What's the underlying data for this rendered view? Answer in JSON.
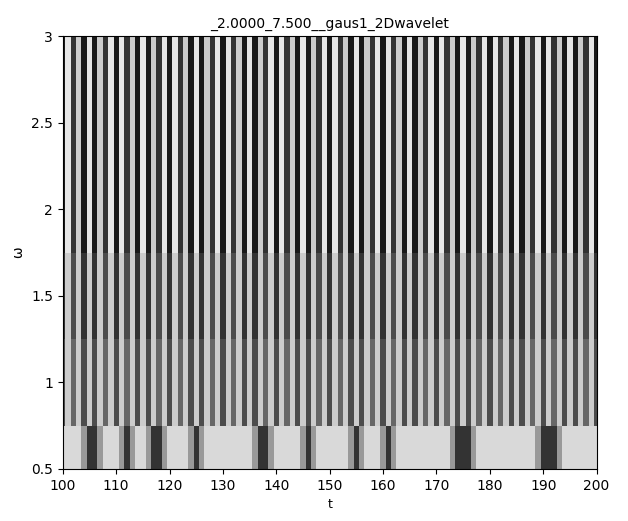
{
  "chart_data": {
    "type": "heatmap",
    "title": "_2.0000_7.500__gaus1_2Dwavelet",
    "x_label": "t",
    "y_label": "ω",
    "xlim": [
      100,
      200
    ],
    "xticks": [
      100,
      110,
      120,
      130,
      140,
      150,
      160,
      170,
      180,
      190,
      200
    ],
    "ylim": [
      0.5,
      3
    ],
    "yticks": [
      0.5,
      1,
      1.5,
      2,
      2.5,
      3
    ],
    "color_range": [
      0,
      1
    ],
    "x": [
      100,
      101,
      102,
      103,
      104,
      105,
      106,
      107,
      108,
      109,
      110,
      111,
      112,
      113,
      114,
      115,
      116,
      117,
      118,
      119,
      120,
      121,
      122,
      123,
      124,
      125,
      126,
      127,
      128,
      129,
      130,
      131,
      132,
      133,
      134,
      135,
      136,
      137,
      138,
      139,
      140,
      141,
      142,
      143,
      144,
      145,
      146,
      147,
      148,
      149,
      150,
      151,
      152,
      153,
      154,
      155,
      156,
      157,
      158,
      159,
      160,
      161,
      162,
      163,
      164,
      165,
      166,
      167,
      168,
      169,
      170,
      171,
      172,
      173,
      174,
      175,
      176,
      177,
      178,
      179,
      180,
      181,
      182,
      183,
      184,
      185,
      186,
      187,
      188,
      189,
      190,
      191,
      192,
      193,
      194,
      195,
      196,
      197,
      198,
      199,
      200
    ],
    "y": [
      0.5,
      1,
      1.5,
      2,
      2.5,
      3
    ],
    "cells": [
      [
        0.85,
        0.85,
        0.85,
        0.85,
        0.6,
        0.2,
        0.2,
        0.6,
        0.85,
        0.85,
        0.85,
        0.6,
        0.2,
        0.6,
        0.85,
        0.85,
        0.6,
        0.2,
        0.2,
        0.6,
        0.85,
        0.85,
        0.85,
        0.85,
        0.6,
        0.2,
        0.6,
        0.85,
        0.85,
        0.85,
        0.85,
        0.85,
        0.85,
        0.85,
        0.85,
        0.85,
        0.6,
        0.2,
        0.2,
        0.6,
        0.85,
        0.85,
        0.85,
        0.85,
        0.85,
        0.6,
        0.2,
        0.6,
        0.85,
        0.85,
        0.85,
        0.85,
        0.85,
        0.85,
        0.6,
        0.2,
        0.6,
        0.85,
        0.85,
        0.85,
        0.6,
        0.2,
        0.6,
        0.85,
        0.85,
        0.85,
        0.85,
        0.85,
        0.85,
        0.85,
        0.85,
        0.85,
        0.85,
        0.6,
        0.2,
        0.2,
        0.2,
        0.6,
        0.85,
        0.85,
        0.85,
        0.85,
        0.85,
        0.85,
        0.85,
        0.85,
        0.85,
        0.85,
        0.85,
        0.6,
        0.2,
        0.2,
        0.2,
        0.6,
        0.85,
        0.85,
        0.85,
        0.85,
        0.85,
        0.85,
        0.85
      ],
      [
        0.3,
        0.8,
        0.4,
        0.8,
        0.3,
        0.8,
        0.3,
        0.8,
        0.4,
        0.8,
        0.3,
        0.8,
        0.4,
        0.8,
        0.3,
        0.8,
        0.3,
        0.8,
        0.4,
        0.8,
        0.3,
        0.8,
        0.4,
        0.8,
        0.3,
        0.8,
        0.3,
        0.8,
        0.4,
        0.8,
        0.3,
        0.8,
        0.4,
        0.8,
        0.3,
        0.8,
        0.3,
        0.8,
        0.4,
        0.8,
        0.3,
        0.8,
        0.4,
        0.8,
        0.3,
        0.8,
        0.3,
        0.8,
        0.4,
        0.8,
        0.3,
        0.8,
        0.4,
        0.8,
        0.3,
        0.8,
        0.3,
        0.8,
        0.4,
        0.8,
        0.3,
        0.8,
        0.4,
        0.8,
        0.3,
        0.8,
        0.3,
        0.8,
        0.4,
        0.8,
        0.3,
        0.8,
        0.4,
        0.8,
        0.3,
        0.8,
        0.3,
        0.8,
        0.4,
        0.8,
        0.3,
        0.8,
        0.4,
        0.8,
        0.3,
        0.8,
        0.3,
        0.8,
        0.4,
        0.8,
        0.3,
        0.8,
        0.4,
        0.8,
        0.3,
        0.8,
        0.3,
        0.8,
        0.4,
        0.8,
        0.3
      ],
      [
        0.2,
        0.8,
        0.3,
        0.8,
        0.2,
        0.8,
        0.2,
        0.8,
        0.3,
        0.8,
        0.2,
        0.8,
        0.3,
        0.8,
        0.2,
        0.8,
        0.2,
        0.8,
        0.3,
        0.8,
        0.2,
        0.8,
        0.3,
        0.8,
        0.2,
        0.8,
        0.2,
        0.8,
        0.3,
        0.8,
        0.2,
        0.8,
        0.3,
        0.8,
        0.2,
        0.8,
        0.2,
        0.8,
        0.3,
        0.8,
        0.2,
        0.8,
        0.3,
        0.8,
        0.2,
        0.8,
        0.2,
        0.8,
        0.3,
        0.8,
        0.2,
        0.8,
        0.3,
        0.8,
        0.2,
        0.8,
        0.2,
        0.8,
        0.3,
        0.8,
        0.2,
        0.8,
        0.3,
        0.8,
        0.2,
        0.8,
        0.2,
        0.8,
        0.3,
        0.8,
        0.2,
        0.8,
        0.3,
        0.8,
        0.2,
        0.8,
        0.2,
        0.8,
        0.3,
        0.8,
        0.2,
        0.8,
        0.3,
        0.8,
        0.2,
        0.8,
        0.2,
        0.8,
        0.3,
        0.8,
        0.2,
        0.8,
        0.3,
        0.8,
        0.2,
        0.8,
        0.2,
        0.8,
        0.3,
        0.8,
        0.2
      ],
      [
        0.1,
        0.9,
        0.2,
        0.8,
        0.1,
        0.9,
        0.1,
        0.8,
        0.2,
        0.9,
        0.1,
        0.9,
        0.2,
        0.8,
        0.1,
        0.9,
        0.1,
        0.8,
        0.2,
        0.9,
        0.1,
        0.9,
        0.2,
        0.8,
        0.1,
        0.9,
        0.1,
        0.8,
        0.2,
        0.9,
        0.1,
        0.9,
        0.2,
        0.8,
        0.1,
        0.9,
        0.1,
        0.8,
        0.2,
        0.9,
        0.1,
        0.9,
        0.2,
        0.8,
        0.1,
        0.9,
        0.1,
        0.8,
        0.2,
        0.9,
        0.1,
        0.9,
        0.2,
        0.8,
        0.1,
        0.9,
        0.1,
        0.8,
        0.2,
        0.9,
        0.1,
        0.9,
        0.2,
        0.8,
        0.1,
        0.9,
        0.1,
        0.8,
        0.2,
        0.9,
        0.1,
        0.9,
        0.2,
        0.8,
        0.1,
        0.9,
        0.1,
        0.8,
        0.2,
        0.9,
        0.1,
        0.9,
        0.2,
        0.8,
        0.1,
        0.9,
        0.1,
        0.8,
        0.2,
        0.9,
        0.1,
        0.9,
        0.2,
        0.8,
        0.1,
        0.9,
        0.1,
        0.8,
        0.2,
        0.9,
        0.1
      ],
      [
        0.1,
        0.9,
        0.2,
        0.8,
        0.1,
        0.9,
        0.1,
        0.8,
        0.2,
        0.9,
        0.1,
        0.9,
        0.2,
        0.8,
        0.1,
        0.9,
        0.1,
        0.8,
        0.2,
        0.9,
        0.1,
        0.9,
        0.2,
        0.8,
        0.1,
        0.9,
        0.1,
        0.8,
        0.2,
        0.9,
        0.1,
        0.9,
        0.2,
        0.8,
        0.1,
        0.9,
        0.1,
        0.8,
        0.2,
        0.9,
        0.1,
        0.9,
        0.2,
        0.8,
        0.1,
        0.9,
        0.1,
        0.8,
        0.2,
        0.9,
        0.1,
        0.9,
        0.2,
        0.8,
        0.1,
        0.9,
        0.1,
        0.8,
        0.2,
        0.9,
        0.1,
        0.9,
        0.2,
        0.8,
        0.1,
        0.9,
        0.1,
        0.8,
        0.2,
        0.9,
        0.1,
        0.9,
        0.2,
        0.8,
        0.1,
        0.9,
        0.1,
        0.8,
        0.2,
        0.9,
        0.1,
        0.9,
        0.2,
        0.8,
        0.1,
        0.9,
        0.1,
        0.8,
        0.2,
        0.9,
        0.1,
        0.9,
        0.2,
        0.8,
        0.1,
        0.9,
        0.1,
        0.8,
        0.2,
        0.9,
        0.1
      ],
      [
        0.1,
        0.9,
        0.2,
        0.8,
        0.1,
        0.9,
        0.1,
        0.8,
        0.2,
        0.9,
        0.1,
        0.9,
        0.2,
        0.8,
        0.1,
        0.9,
        0.1,
        0.8,
        0.2,
        0.9,
        0.1,
        0.9,
        0.2,
        0.8,
        0.1,
        0.9,
        0.1,
        0.8,
        0.2,
        0.9,
        0.1,
        0.9,
        0.2,
        0.8,
        0.1,
        0.9,
        0.1,
        0.8,
        0.2,
        0.9,
        0.1,
        0.9,
        0.2,
        0.8,
        0.1,
        0.9,
        0.1,
        0.8,
        0.2,
        0.9,
        0.1,
        0.9,
        0.2,
        0.8,
        0.1,
        0.9,
        0.1,
        0.8,
        0.2,
        0.9,
        0.1,
        0.9,
        0.2,
        0.8,
        0.1,
        0.9,
        0.1,
        0.8,
        0.2,
        0.9,
        0.1,
        0.9,
        0.2,
        0.8,
        0.1,
        0.9,
        0.1,
        0.8,
        0.2,
        0.9,
        0.1,
        0.9,
        0.2,
        0.8,
        0.1,
        0.9,
        0.1,
        0.8,
        0.2,
        0.9,
        0.1,
        0.9,
        0.2,
        0.8,
        0.1,
        0.9,
        0.1,
        0.8,
        0.2,
        0.9,
        0.1
      ]
    ]
  }
}
